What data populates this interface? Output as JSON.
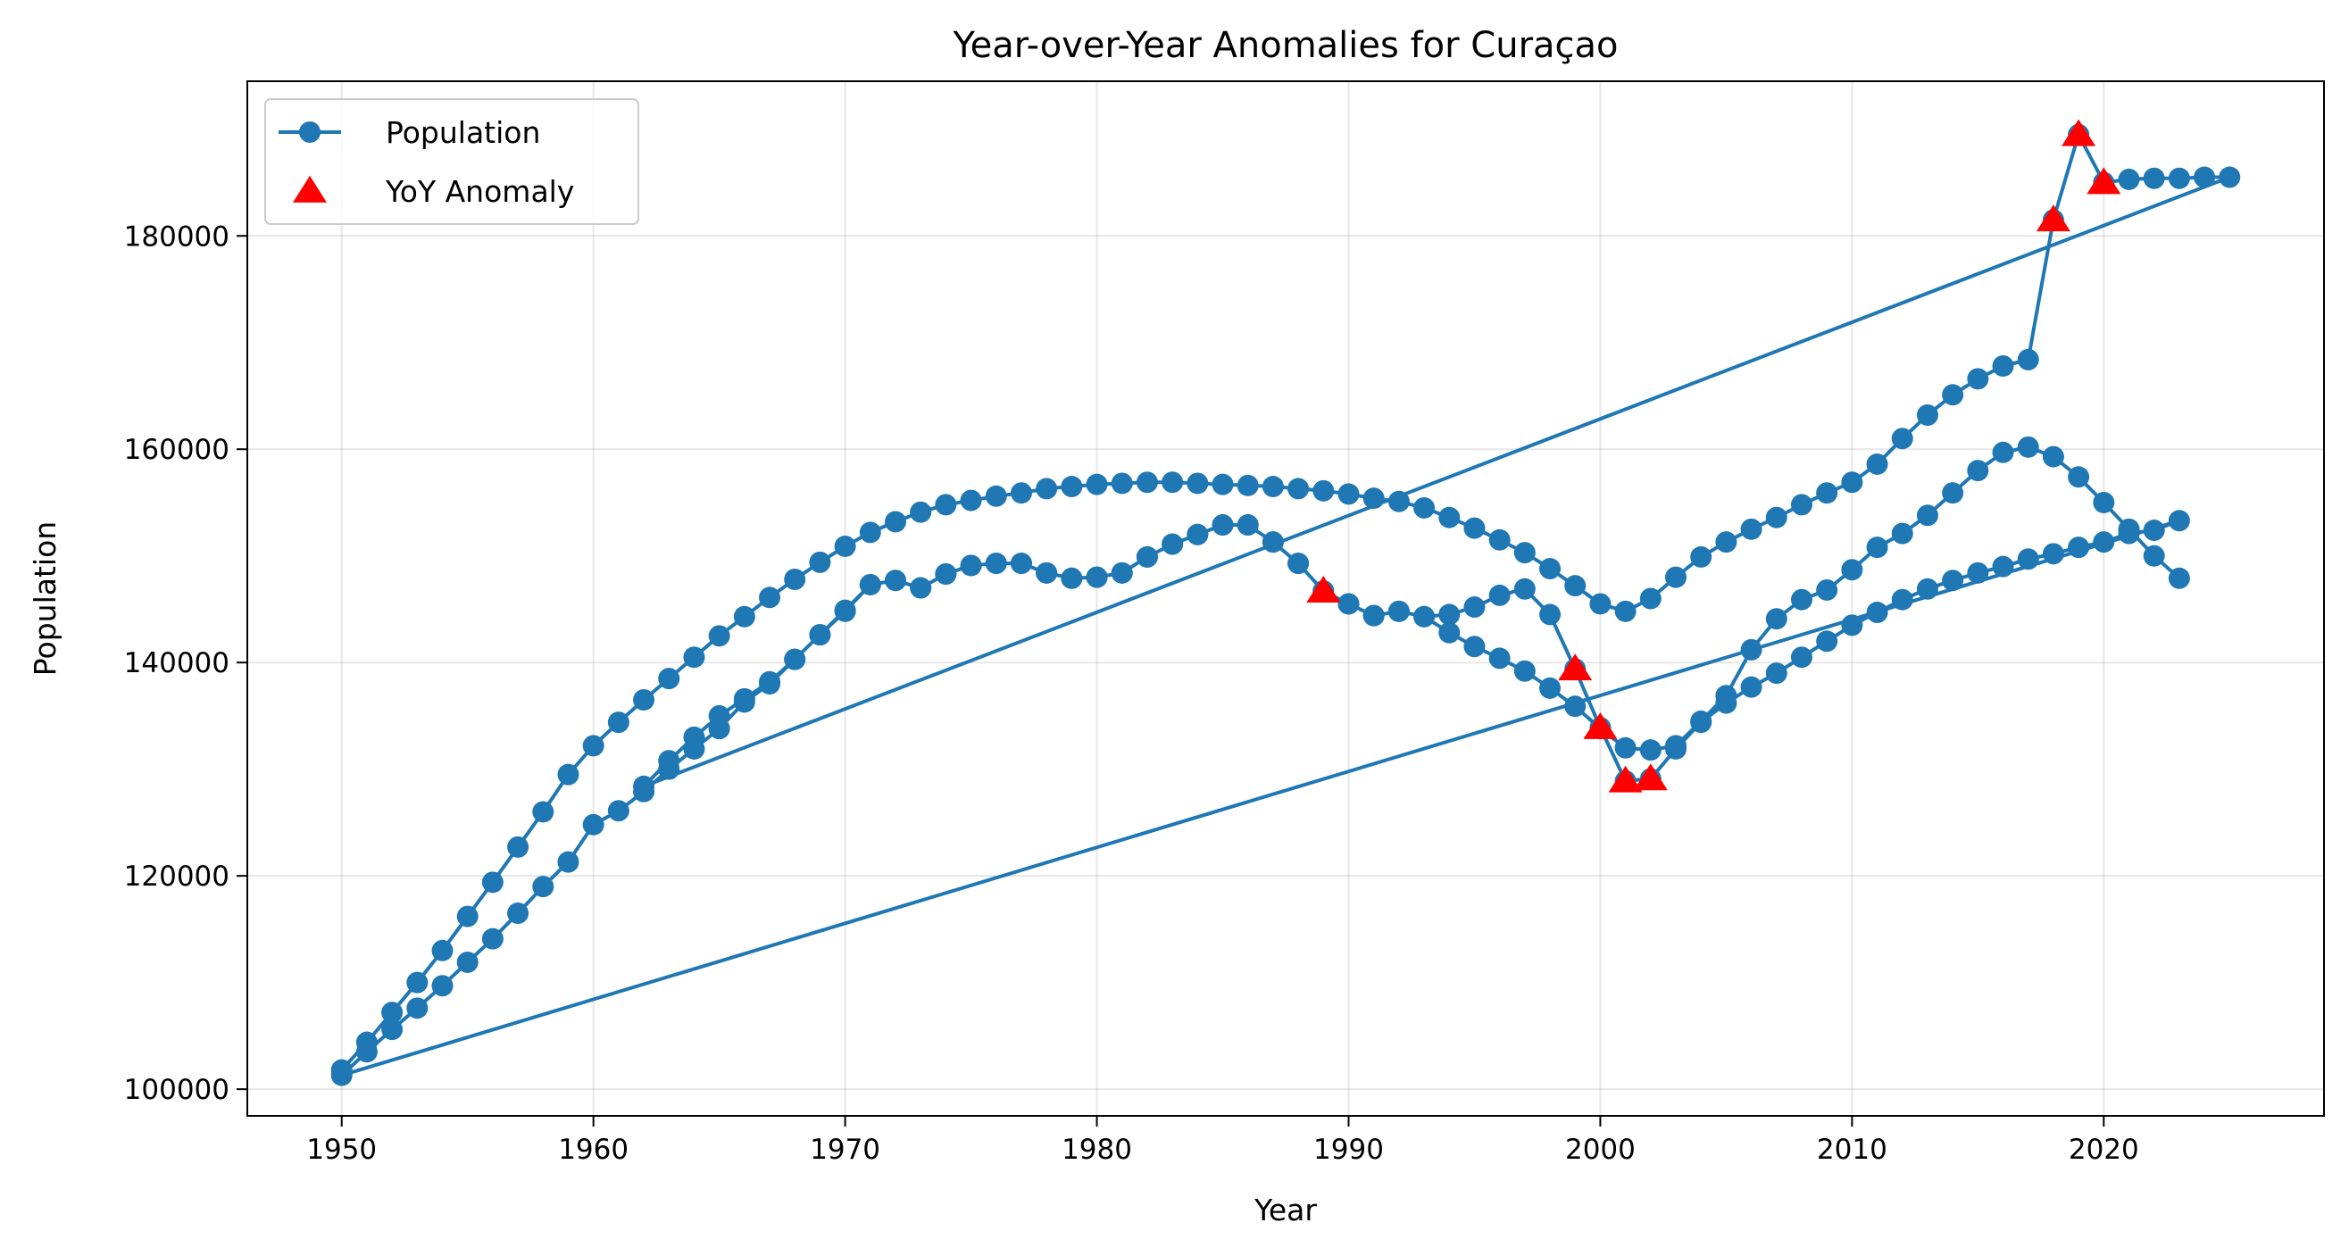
{
  "chart_data": {
    "type": "line",
    "title": "Year-over-Year Anomalies for Curaçao",
    "xlabel": "Year",
    "ylabel": "Population",
    "xlim": [
      1946.25,
      2028.75
    ],
    "ylim": [
      97500,
      194500
    ],
    "xticks": [
      1950,
      1960,
      1970,
      1980,
      1990,
      2000,
      2010,
      2020
    ],
    "yticks": [
      100000,
      120000,
      140000,
      160000,
      180000
    ],
    "grid": true,
    "legend_position": "top-left",
    "colors": {
      "line": "#1f77b4",
      "anomaly": "#ff0000"
    },
    "series": [
      {
        "name": "Population",
        "kind": "line-markers",
        "x": [
          1950,
          1951,
          1952,
          1953,
          1954,
          1955,
          1956,
          1957,
          1958,
          1959,
          1960,
          1961,
          1962,
          1963,
          1964,
          1965,
          1966,
          1967,
          1968,
          1969,
          1970,
          1971,
          1972,
          1973,
          1974,
          1975,
          1976,
          1977,
          1978,
          1979,
          1980,
          1981,
          1982,
          1983,
          1984,
          1985,
          1986,
          1987,
          1988,
          1989,
          1990,
          1991,
          1992,
          1993,
          1994,
          1995,
          1996,
          1997,
          1998,
          1999,
          2000,
          2001,
          2002,
          2003,
          2004,
          2005,
          2006,
          2007,
          2008,
          2009,
          2010,
          2011,
          2012,
          2013,
          2014,
          2015,
          2016,
          2017,
          2018,
          2019,
          2020,
          2021,
          2022,
          2023,
          2024,
          2025,
          1962,
          1963,
          1964,
          1965,
          1966,
          1967,
          1968,
          1969,
          1970,
          1971,
          1972,
          1973,
          1974,
          1975,
          1976,
          1977,
          1978,
          1979,
          1980,
          1981,
          1982,
          1983,
          1984,
          1985,
          1986,
          1987,
          1988,
          1989,
          1990,
          1991,
          1992,
          1993,
          1994,
          1995,
          1996,
          1997,
          1998,
          1999,
          2000,
          2001,
          2002,
          2003,
          2004,
          2005,
          2006,
          2007,
          2008,
          2009,
          2010,
          2011,
          2012,
          2013,
          2014,
          2015,
          2016,
          2017,
          2018,
          2019,
          2020,
          2021,
          2022,
          2023,
          1950,
          1951,
          1952,
          1953,
          1954,
          1955,
          1956,
          1957,
          1958,
          1959,
          1960,
          1961,
          1962,
          1963,
          1964,
          1965,
          1966,
          1967,
          1968,
          1969,
          1970,
          1971,
          1972,
          1973,
          1974,
          1975,
          1976,
          1977,
          1978,
          1979,
          1980,
          1981,
          1982,
          1983,
          1984,
          1985,
          1986,
          1987,
          1988,
          1989,
          1990,
          1991,
          1992,
          1993,
          1994,
          1995,
          1996,
          1997,
          1998,
          1999,
          2000,
          2001,
          2002,
          2003,
          2004,
          2005,
          2006,
          2007,
          2008,
          2009,
          2010,
          2011,
          2012,
          2013,
          2014,
          2015,
          2016,
          2017,
          2018,
          2019,
          2020,
          2021,
          2022,
          2023
        ],
        "y": [
          101800,
          104400,
          107200,
          110000,
          113000,
          116200,
          119400,
          122700,
          126000,
          129500,
          132200,
          134400,
          136500,
          138500,
          140500,
          142500,
          144300,
          146100,
          147800,
          149400,
          150900,
          152200,
          153200,
          154100,
          154800,
          155200,
          155600,
          155900,
          156300,
          156500,
          156700,
          156800,
          156900,
          156900,
          156800,
          156700,
          156600,
          156500,
          156300,
          156100,
          155800,
          155400,
          155100,
          154500,
          153600,
          152600,
          151500,
          150300,
          148800,
          147200,
          145500,
          144800,
          146000,
          148000,
          149900,
          151300,
          152500,
          153600,
          154800,
          155900,
          156900,
          158600,
          161000,
          163200,
          165100,
          166600,
          167800,
          168400,
          181500,
          189500,
          185000,
          185300,
          185400,
          185400,
          185500,
          185500,
          128400,
          130800,
          133000,
          135000,
          136600,
          138200,
          140300,
          142600,
          144800,
          147300,
          147700,
          147000,
          148300,
          149100,
          149300,
          149300,
          148400,
          147900,
          148000,
          148400,
          149900,
          151100,
          152000,
          152900,
          152900,
          151300,
          149300,
          146700,
          145500,
          144400,
          144800,
          144300,
          144500,
          145200,
          146300,
          146900,
          144500,
          139400,
          133900,
          128900,
          129100,
          131900,
          134400,
          136200,
          137700,
          139000,
          140500,
          142000,
          143500,
          144700,
          145900,
          146900,
          147700,
          148400,
          149000,
          149700,
          150200,
          150800,
          151300,
          152100,
          152400,
          153300,
          101300,
          103500,
          105600,
          107600,
          109700,
          111900,
          114100,
          116500,
          119000,
          121300,
          124800,
          126100,
          127900,
          130000,
          131900,
          133800,
          136300,
          138000,
          140300,
          142600,
          144900,
          147300,
          147700,
          147000,
          148300,
          149100,
          149300,
          149300,
          148400,
          147900,
          148000,
          148400,
          149900,
          151100,
          152000,
          152900,
          152900,
          151300,
          149300,
          146700,
          145500,
          144400,
          144800,
          144300,
          142800,
          141500,
          140400,
          139200,
          137600,
          135900,
          133800,
          132000,
          131800,
          132200,
          134500,
          136900,
          141200,
          144100,
          145900,
          146800,
          148700,
          150800,
          152100,
          153800,
          155900,
          158000,
          159700,
          160200,
          159300,
          157400,
          155000,
          152500,
          150000,
          147900
        ]
      },
      {
        "name": "YoY Anomaly",
        "kind": "markers",
        "x": [
          1989,
          1999,
          2000,
          2001,
          2002,
          2018,
          2019,
          2020
        ],
        "y": [
          146700,
          139400,
          133900,
          128900,
          129100,
          181500,
          189500,
          185000
        ]
      }
    ]
  }
}
